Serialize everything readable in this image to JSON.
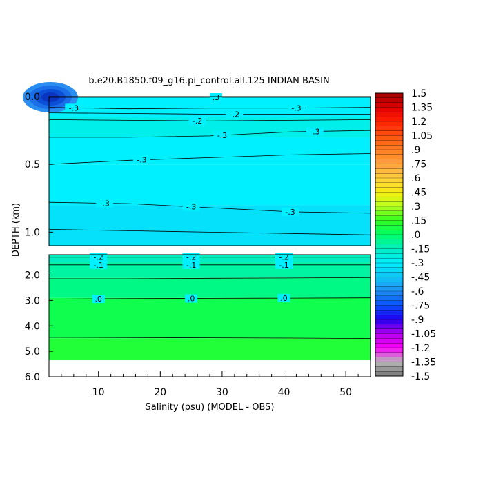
{
  "chart_data": {
    "type": "heatmap",
    "title": "b.e20.B1850.f09_g16.pi_control.all.125 INDIAN BASIN",
    "xlabel": "Salinity (psu) (MODEL - OBS)",
    "ylabel": "DEPTH (km)",
    "xlim": [
      2,
      54
    ],
    "x_ticks": [
      10,
      20,
      30,
      40,
      50
    ],
    "x_tick_labels": [
      "10",
      "20",
      "30",
      "40",
      "50"
    ],
    "panels": [
      {
        "name": "upper",
        "ylim": [
          0.0,
          1.1
        ],
        "y_ticks": [
          0.0,
          0.5,
          1.0
        ],
        "y_tick_labels": [
          "0.0",
          "0.5",
          "1.0"
        ],
        "bands": [
          {
            "from": 0.0,
            "to": 0.15,
            "value": -0.3
          },
          {
            "from": 0.15,
            "to": 0.3,
            "value": -0.25
          },
          {
            "from": 0.3,
            "to": 0.5,
            "value": -0.3
          },
          {
            "from": 0.5,
            "to": 0.8,
            "value": -0.3
          },
          {
            "from": 0.8,
            "to": 1.1,
            "value": -0.35
          }
        ],
        "contours": [
          {
            "y": [
              0.005,
              0.005,
              0.005,
              0.005,
              0.005
            ],
            "label": ".3",
            "label_x": [
              29
            ]
          },
          {
            "y": [
              0.08,
              0.09,
              0.085,
              0.085,
              0.08
            ],
            "label": "-.3",
            "label_x": [
              6,
              42
            ]
          },
          {
            "y": [
              0.12,
              0.125,
              0.13,
              0.13,
              0.13
            ],
            "label": "-.2",
            "label_x": [
              32
            ]
          },
          {
            "y": [
              0.17,
              0.175,
              0.18,
              0.175,
              0.17
            ],
            "label": "-.2",
            "label_x": [
              26
            ]
          },
          {
            "y": [
              0.3,
              0.3,
              0.29,
              0.26,
              0.25
            ],
            "label": "-.3",
            "label_x": [
              30,
              45
            ]
          },
          {
            "y": [
              0.5,
              0.47,
              0.45,
              0.43,
              0.42
            ],
            "label": "-.3",
            "label_x": [
              17
            ]
          },
          {
            "y": [
              0.78,
              0.79,
              0.82,
              0.85,
              0.86
            ],
            "label": "-.3",
            "label_x": [
              11,
              25,
              41
            ]
          },
          {
            "y": [
              0.98,
              0.99,
              1.0,
              1.01,
              1.02
            ],
            "label": "",
            "label_x": []
          }
        ]
      },
      {
        "name": "lower",
        "ylim": [
          1.2,
          6.0
        ],
        "y_ticks": [
          2.0,
          3.0,
          4.0,
          5.0,
          6.0
        ],
        "y_tick_labels": [
          "2.0",
          "3.0",
          "4.0",
          "5.0",
          "6.0"
        ],
        "bands": [
          {
            "from": 1.2,
            "to": 1.5,
            "value": -0.15
          },
          {
            "from": 1.5,
            "to": 2.1,
            "value": -0.1
          },
          {
            "from": 2.1,
            "to": 2.9,
            "value": -0.05
          },
          {
            "from": 2.9,
            "to": 4.5,
            "value": 0.05
          },
          {
            "from": 4.5,
            "to": 5.35,
            "value": 0.1
          }
        ],
        "contours": [
          {
            "y": [
              1.3,
              1.3,
              1.3,
              1.3,
              1.3
            ],
            "label": "-.2",
            "label_x": [
              10,
              25,
              40
            ]
          },
          {
            "y": [
              1.6,
              1.6,
              1.6,
              1.6,
              1.6
            ],
            "label": "-.1",
            "label_x": [
              10,
              25,
              40
            ]
          },
          {
            "y": [
              2.15,
              2.15,
              2.13,
              2.12,
              2.1
            ],
            "label": "",
            "label_x": []
          },
          {
            "y": [
              2.95,
              2.93,
              2.92,
              2.91,
              2.9
            ],
            "label": ".0",
            "label_x": [
              10,
              25,
              40
            ]
          },
          {
            "y": [
              4.45,
              4.46,
              4.47,
              4.48,
              4.5
            ],
            "label": "",
            "label_x": []
          }
        ]
      }
    ],
    "colorbar": {
      "min": -1.5,
      "max": 1.5,
      "tick_labels": [
        "1.5",
        "1.35",
        "1.2",
        "1.05",
        ".9",
        ".75",
        ".6",
        ".45",
        ".3",
        ".15",
        ".0",
        "-.15",
        "-.3",
        "-.45",
        "-.6",
        "-.75",
        "-.9",
        "-1.05",
        "-1.2",
        "-1.35",
        "-1.5"
      ]
    },
    "colors": {
      "cyan": "#00f5ff",
      "aqua_green": "#00eec4",
      "green": "#00ff33",
      "deep_blue": "#0040d0"
    }
  }
}
